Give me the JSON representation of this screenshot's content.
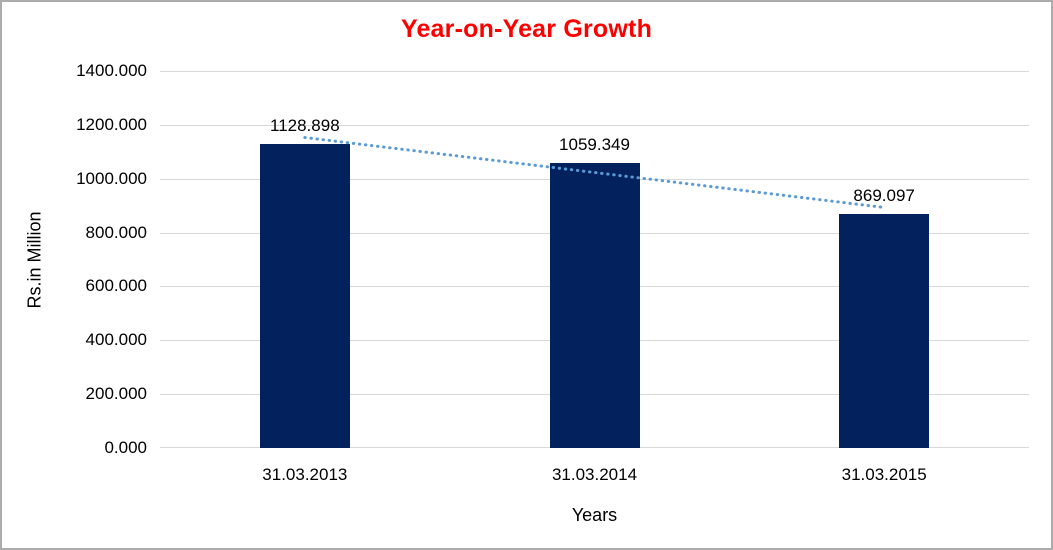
{
  "chart_data": {
    "type": "bar",
    "title": "Year-on-Year Growth",
    "title_color": "#FF0000",
    "xlabel": "Years",
    "ylabel": "Rs.in Million",
    "categories": [
      "31.03.2013",
      "31.03.2014",
      "31.03.2015"
    ],
    "values": [
      1128.898,
      1059.349,
      869.097
    ],
    "data_labels": [
      "1128.898",
      "1059.349",
      "869.097"
    ],
    "ylim": [
      0,
      1400
    ],
    "ytick_step": 200,
    "ytick_labels": [
      "0.000",
      "200.000",
      "400.000",
      "600.000",
      "800.000",
      "1000.000",
      "1200.000",
      "1400.000"
    ],
    "bar_color": "#03215C",
    "gridline_color": "#D9D9D9",
    "grid": "horizontal",
    "legend_position": "none",
    "trendline": {
      "type": "linear",
      "style": "dotted",
      "color": "#5B9BD5"
    }
  }
}
